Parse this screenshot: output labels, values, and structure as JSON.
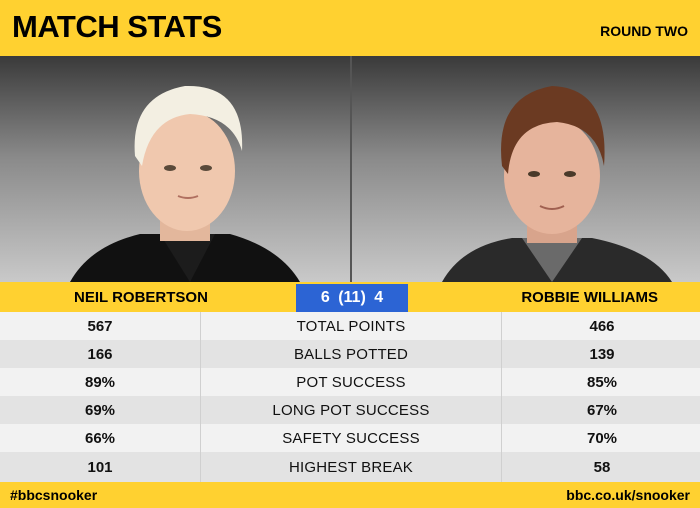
{
  "header": {
    "title": "MATCH STATS",
    "round": "ROUND TWO"
  },
  "players": {
    "left": {
      "name": "NEIL ROBERTSON"
    },
    "right": {
      "name": "ROBBIE WILLIAMS"
    }
  },
  "score": "6 (11) 4",
  "stats": [
    {
      "label": "TOTAL POINTS",
      "left": "567",
      "right": "466"
    },
    {
      "label": "BALLS POTTED",
      "left": "166",
      "right": "139"
    },
    {
      "label": "POT SUCCESS",
      "left": "89%",
      "right": "85%"
    },
    {
      "label": "LONG POT SUCCESS",
      "left": "69%",
      "right": "67%"
    },
    {
      "label": "SAFETY SUCCESS",
      "left": "66%",
      "right": "70%"
    },
    {
      "label": "HIGHEST BREAK",
      "left": "101",
      "right": "58"
    }
  ],
  "footer": {
    "hashtag": "#bbcsnooker",
    "site": "bbc.co.uk/snooker"
  },
  "colors": {
    "brand_yellow": "#ffd130",
    "score_blue": "#2c64d4"
  }
}
